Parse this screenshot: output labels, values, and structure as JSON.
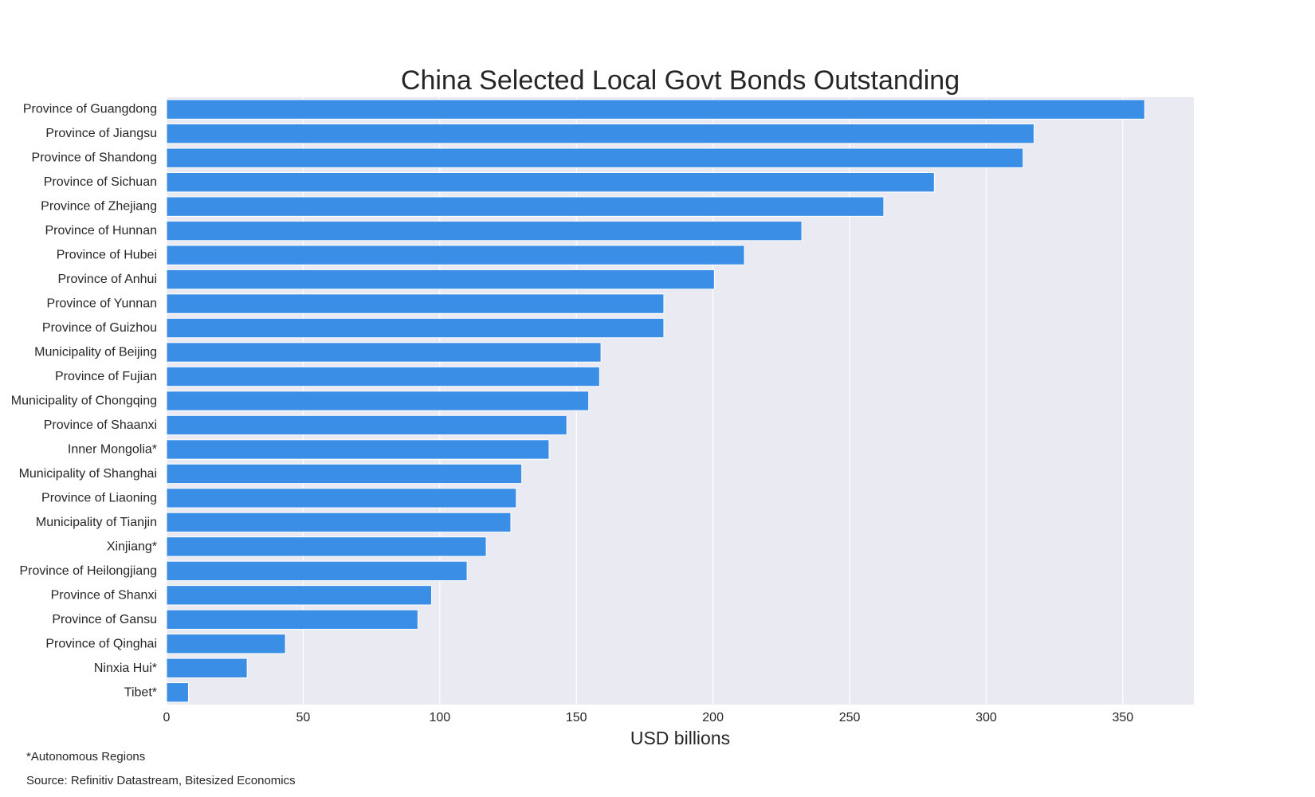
{
  "chart_data": {
    "type": "bar",
    "orientation": "horizontal",
    "title": "China Selected Local Govt Bonds Outstanding",
    "xlabel": "USD billions",
    "ylabel": "",
    "xlim": [
      0,
      376
    ],
    "x_ticks": [
      0,
      50,
      100,
      150,
      200,
      250,
      300,
      350
    ],
    "grid": true,
    "colors": {
      "bar": "#3a8ee6",
      "plot_background": "#eaeaf2",
      "grid": "#ffffff"
    },
    "categories": [
      "Province of Guangdong",
      "Province of Jiangsu",
      "Province of Shandong",
      "Province of Sichuan",
      "Province of Zhejiang",
      "Province of Hunnan",
      "Province of Hubei",
      "Province of Anhui",
      "Province of Yunnan",
      "Province of Guizhou",
      "Municipality of Beijing",
      "Province of Fujian",
      "Municipality of Chongqing",
      "Province of Shaanxi",
      "Inner Mongolia*",
      "Municipality of Shanghai",
      "Province of Liaoning",
      "Municipality of Tianjin",
      "Xinjiang*",
      "Province of Heilongjiang",
      "Province of Shanxi",
      "Province of Gansu",
      "Province of Qinghai",
      "Ninxia Hui*",
      "Tibet*"
    ],
    "values": [
      358,
      317.5,
      313.5,
      281,
      262.5,
      232.5,
      211.5,
      200.5,
      182,
      182,
      159,
      158.5,
      154.5,
      146.5,
      140,
      130,
      128,
      126,
      117,
      110,
      97,
      92,
      43.5,
      29.5,
      8
    ]
  },
  "footnotes": {
    "autonomous_note": "*Autonomous Regions",
    "source": "Source: Refinitiv Datastream, Bitesized Economics"
  }
}
